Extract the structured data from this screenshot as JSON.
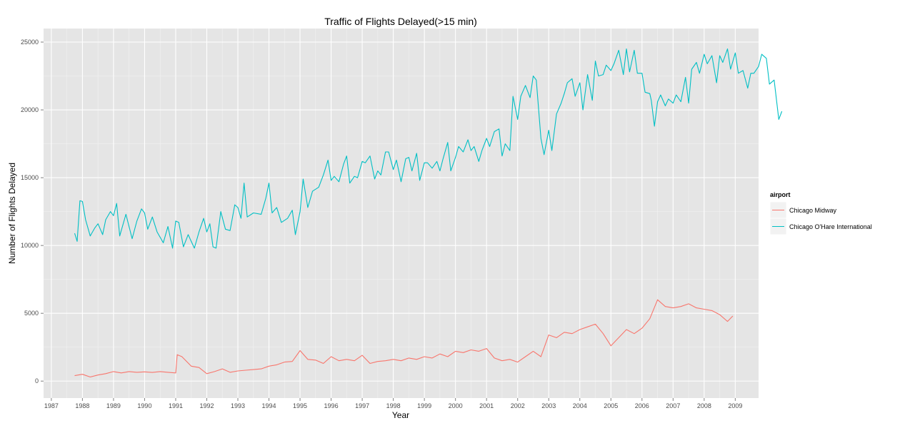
{
  "chart_data": {
    "type": "line",
    "title": "Traffic of Flights Delayed(>15 min)",
    "xlabel": "Year",
    "ylabel": "Number of Flights Delayed",
    "xlim": [
      1986.75,
      2009.75
    ],
    "ylim": [
      -1250,
      26000
    ],
    "x_ticks": [
      1987,
      1988,
      1989,
      1990,
      1991,
      1992,
      1993,
      1994,
      1995,
      1996,
      1997,
      1998,
      1999,
      2000,
      2001,
      2002,
      2003,
      2004,
      2005,
      2006,
      2007,
      2008,
      2009
    ],
    "x_tick_labels": [
      "1987",
      "1988",
      "1989",
      "1990",
      "1991",
      "1992",
      "1993",
      "1994",
      "1995",
      "1996",
      "1997",
      "1998",
      "1999",
      "2000",
      "2001",
      "2002",
      "2003",
      "2004",
      "2005",
      "2006",
      "2007",
      "2008",
      "2009"
    ],
    "y_ticks": [
      0,
      5000,
      10000,
      15000,
      20000,
      25000
    ],
    "y_tick_labels": [
      "0",
      "5000",
      "10000",
      "15000",
      "20000",
      "25000"
    ],
    "grid": true,
    "background": "#e5e5e5",
    "legend": {
      "title": "airport",
      "position": "right"
    },
    "series": [
      {
        "name": "Chicago Midway",
        "color": "#f8766d",
        "points": [
          [
            1987.75,
            400
          ],
          [
            1988.0,
            500
          ],
          [
            1988.25,
            300
          ],
          [
            1988.5,
            450
          ],
          [
            1988.75,
            550
          ],
          [
            1989.0,
            700
          ],
          [
            1989.25,
            600
          ],
          [
            1989.5,
            700
          ],
          [
            1989.75,
            650
          ],
          [
            1990.0,
            680
          ],
          [
            1990.25,
            640
          ],
          [
            1990.5,
            700
          ],
          [
            1990.75,
            650
          ],
          [
            1991.0,
            600
          ],
          [
            1991.05,
            1950
          ],
          [
            1991.2,
            1800
          ],
          [
            1991.5,
            1100
          ],
          [
            1991.75,
            1000
          ],
          [
            1992.0,
            550
          ],
          [
            1992.25,
            700
          ],
          [
            1992.5,
            900
          ],
          [
            1992.75,
            650
          ],
          [
            1993.0,
            750
          ],
          [
            1993.25,
            800
          ],
          [
            1993.5,
            850
          ],
          [
            1993.75,
            900
          ],
          [
            1994.0,
            1100
          ],
          [
            1994.25,
            1200
          ],
          [
            1994.5,
            1400
          ],
          [
            1994.75,
            1450
          ],
          [
            1995.0,
            2250
          ],
          [
            1995.25,
            1600
          ],
          [
            1995.5,
            1550
          ],
          [
            1995.75,
            1300
          ],
          [
            1996.0,
            1800
          ],
          [
            1996.25,
            1500
          ],
          [
            1996.5,
            1600
          ],
          [
            1996.75,
            1500
          ],
          [
            1997.0,
            1900
          ],
          [
            1997.25,
            1300
          ],
          [
            1997.5,
            1450
          ],
          [
            1997.75,
            1500
          ],
          [
            1998.0,
            1600
          ],
          [
            1998.25,
            1500
          ],
          [
            1998.5,
            1700
          ],
          [
            1998.75,
            1600
          ],
          [
            1999.0,
            1800
          ],
          [
            1999.25,
            1700
          ],
          [
            1999.5,
            2000
          ],
          [
            1999.75,
            1800
          ],
          [
            2000.0,
            2200
          ],
          [
            2000.25,
            2100
          ],
          [
            2000.5,
            2300
          ],
          [
            2000.75,
            2200
          ],
          [
            2001.0,
            2400
          ],
          [
            2001.25,
            1700
          ],
          [
            2001.5,
            1500
          ],
          [
            2001.75,
            1600
          ],
          [
            2002.0,
            1400
          ],
          [
            2002.25,
            1800
          ],
          [
            2002.5,
            2200
          ],
          [
            2002.75,
            1800
          ],
          [
            2003.0,
            3400
          ],
          [
            2003.25,
            3200
          ],
          [
            2003.5,
            3600
          ],
          [
            2003.75,
            3500
          ],
          [
            2004.0,
            3800
          ],
          [
            2004.25,
            4000
          ],
          [
            2004.5,
            4200
          ],
          [
            2004.75,
            3500
          ],
          [
            2005.0,
            2600
          ],
          [
            2005.25,
            3200
          ],
          [
            2005.5,
            3800
          ],
          [
            2005.75,
            3500
          ],
          [
            2006.0,
            3900
          ],
          [
            2006.25,
            4600
          ],
          [
            2006.5,
            6000
          ],
          [
            2006.75,
            5500
          ],
          [
            2007.0,
            5400
          ],
          [
            2007.25,
            5500
          ],
          [
            2007.5,
            5700
          ],
          [
            2007.75,
            5400
          ],
          [
            2008.0,
            5300
          ],
          [
            2008.25,
            5200
          ],
          [
            2008.5,
            4900
          ],
          [
            2008.75,
            4400
          ],
          [
            2008.92,
            4800
          ]
        ]
      },
      {
        "name": "Chicago O'Hare International",
        "color": "#00bfc4",
        "points": [
          [
            1987.75,
            10900
          ],
          [
            1987.83,
            10300
          ],
          [
            1987.92,
            13300
          ],
          [
            1988.0,
            13250
          ],
          [
            1988.1,
            11900
          ],
          [
            1988.25,
            10700
          ],
          [
            1988.4,
            11300
          ],
          [
            1988.5,
            11600
          ],
          [
            1988.65,
            10800
          ],
          [
            1988.75,
            11900
          ],
          [
            1988.9,
            12500
          ],
          [
            1989.0,
            12200
          ],
          [
            1989.1,
            13100
          ],
          [
            1989.2,
            10700
          ],
          [
            1989.4,
            12300
          ],
          [
            1989.6,
            10500
          ],
          [
            1989.75,
            11800
          ],
          [
            1989.9,
            12700
          ],
          [
            1990.0,
            12400
          ],
          [
            1990.1,
            11200
          ],
          [
            1990.25,
            12100
          ],
          [
            1990.4,
            11000
          ],
          [
            1990.6,
            10200
          ],
          [
            1990.75,
            11400
          ],
          [
            1990.9,
            9800
          ],
          [
            1991.0,
            11800
          ],
          [
            1991.1,
            11700
          ],
          [
            1991.25,
            9900
          ],
          [
            1991.4,
            10800
          ],
          [
            1991.6,
            9800
          ],
          [
            1991.75,
            11000
          ],
          [
            1991.9,
            12000
          ],
          [
            1992.0,
            11000
          ],
          [
            1992.1,
            11600
          ],
          [
            1992.2,
            9900
          ],
          [
            1992.3,
            9800
          ],
          [
            1992.45,
            12500
          ],
          [
            1992.6,
            11200
          ],
          [
            1992.75,
            11100
          ],
          [
            1992.9,
            13000
          ],
          [
            1993.0,
            12800
          ],
          [
            1993.1,
            12000
          ],
          [
            1993.2,
            14600
          ],
          [
            1993.3,
            12100
          ],
          [
            1993.5,
            12400
          ],
          [
            1993.75,
            12300
          ],
          [
            1993.9,
            13500
          ],
          [
            1994.0,
            14600
          ],
          [
            1994.1,
            12400
          ],
          [
            1994.25,
            12800
          ],
          [
            1994.4,
            11700
          ],
          [
            1994.6,
            12000
          ],
          [
            1994.75,
            12600
          ],
          [
            1994.85,
            10800
          ],
          [
            1995.0,
            12500
          ],
          [
            1995.1,
            14900
          ],
          [
            1995.25,
            12800
          ],
          [
            1995.4,
            14000
          ],
          [
            1995.6,
            14300
          ],
          [
            1995.75,
            15200
          ],
          [
            1995.9,
            16300
          ],
          [
            1996.0,
            14800
          ],
          [
            1996.1,
            15100
          ],
          [
            1996.25,
            14700
          ],
          [
            1996.4,
            16000
          ],
          [
            1996.5,
            16600
          ],
          [
            1996.6,
            14600
          ],
          [
            1996.75,
            15100
          ],
          [
            1996.85,
            15000
          ],
          [
            1997.0,
            16200
          ],
          [
            1997.1,
            16100
          ],
          [
            1997.25,
            16600
          ],
          [
            1997.4,
            14900
          ],
          [
            1997.5,
            15500
          ],
          [
            1997.6,
            15200
          ],
          [
            1997.75,
            16900
          ],
          [
            1997.85,
            16900
          ],
          [
            1998.0,
            15600
          ],
          [
            1998.1,
            16300
          ],
          [
            1998.25,
            14700
          ],
          [
            1998.4,
            16400
          ],
          [
            1998.5,
            16500
          ],
          [
            1998.6,
            15500
          ],
          [
            1998.75,
            16800
          ],
          [
            1998.85,
            14800
          ],
          [
            1999.0,
            16100
          ],
          [
            1999.1,
            16100
          ],
          [
            1999.25,
            15700
          ],
          [
            1999.4,
            16200
          ],
          [
            1999.5,
            15500
          ],
          [
            1999.6,
            16400
          ],
          [
            1999.75,
            17600
          ],
          [
            1999.85,
            15500
          ],
          [
            2000.0,
            16500
          ],
          [
            2000.1,
            17300
          ],
          [
            2000.25,
            16900
          ],
          [
            2000.4,
            17800
          ],
          [
            2000.5,
            17000
          ],
          [
            2000.6,
            17300
          ],
          [
            2000.75,
            16200
          ],
          [
            2000.85,
            17000
          ],
          [
            2001.0,
            17900
          ],
          [
            2001.1,
            17300
          ],
          [
            2001.25,
            18400
          ],
          [
            2001.4,
            18600
          ],
          [
            2001.5,
            16600
          ],
          [
            2001.6,
            17500
          ],
          [
            2001.75,
            17000
          ],
          [
            2001.85,
            21000
          ],
          [
            2002.0,
            19300
          ],
          [
            2002.1,
            21000
          ],
          [
            2002.25,
            21800
          ],
          [
            2002.4,
            20900
          ],
          [
            2002.5,
            22500
          ],
          [
            2002.6,
            22200
          ],
          [
            2002.75,
            17900
          ],
          [
            2002.85,
            16700
          ],
          [
            2003.0,
            18500
          ],
          [
            2003.1,
            17000
          ],
          [
            2003.25,
            19700
          ],
          [
            2003.4,
            20500
          ],
          [
            2003.5,
            21200
          ],
          [
            2003.6,
            22000
          ],
          [
            2003.75,
            22300
          ],
          [
            2003.85,
            21000
          ],
          [
            2004.0,
            22000
          ],
          [
            2004.1,
            20000
          ],
          [
            2004.25,
            22600
          ],
          [
            2004.4,
            20700
          ],
          [
            2004.5,
            23600
          ],
          [
            2004.6,
            22500
          ],
          [
            2004.75,
            22600
          ],
          [
            2004.85,
            23300
          ],
          [
            2005.0,
            22900
          ],
          [
            2005.1,
            23400
          ],
          [
            2005.25,
            24400
          ],
          [
            2005.4,
            22600
          ],
          [
            2005.5,
            24500
          ],
          [
            2005.6,
            22800
          ],
          [
            2005.75,
            24400
          ],
          [
            2005.85,
            22700
          ],
          [
            2006.0,
            22700
          ],
          [
            2006.1,
            21300
          ],
          [
            2006.25,
            21200
          ],
          [
            2006.3,
            20700
          ],
          [
            2006.4,
            18800
          ],
          [
            2006.5,
            20600
          ],
          [
            2006.6,
            21100
          ],
          [
            2006.75,
            20300
          ],
          [
            2006.85,
            20800
          ],
          [
            2007.0,
            20500
          ],
          [
            2007.1,
            21100
          ],
          [
            2007.25,
            20600
          ],
          [
            2007.4,
            22400
          ],
          [
            2007.5,
            20500
          ],
          [
            2007.6,
            23000
          ],
          [
            2007.75,
            23500
          ],
          [
            2007.85,
            22700
          ],
          [
            2008.0,
            24100
          ],
          [
            2008.1,
            23400
          ],
          [
            2008.25,
            24000
          ],
          [
            2008.4,
            22000
          ],
          [
            2008.5,
            24000
          ],
          [
            2008.6,
            23500
          ],
          [
            2008.75,
            24500
          ],
          [
            2008.85,
            23000
          ],
          [
            2009.0,
            24200
          ],
          [
            2009.1,
            22700
          ],
          [
            2009.25,
            22900
          ],
          [
            2009.4,
            21600
          ],
          [
            2009.5,
            22700
          ],
          [
            2009.6,
            22700
          ],
          [
            2009.75,
            23200
          ],
          [
            2009.85,
            24100
          ],
          [
            2010.0,
            23800
          ],
          [
            2010.1,
            21900
          ],
          [
            2010.25,
            22200
          ],
          [
            2010.4,
            19300
          ],
          [
            2010.5,
            19900
          ]
        ]
      }
    ]
  }
}
